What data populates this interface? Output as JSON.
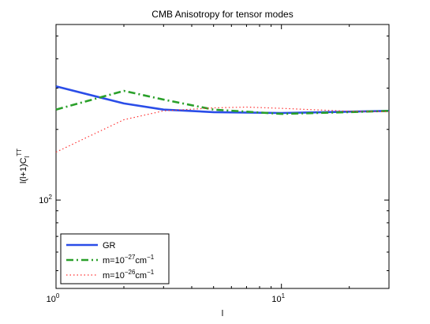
{
  "chart_data": {
    "type": "line",
    "title": "CMB Anisotropy for tensor modes",
    "xlabel": "l",
    "ylabel": "l(l+1)C_l^TT",
    "xscale": "log",
    "yscale": "log",
    "xlim": [
      1,
      30
    ],
    "ylim": [
      42,
      560
    ],
    "x_ticks": [
      {
        "value": 1,
        "base": "10",
        "exp": "0"
      },
      {
        "value": 10,
        "base": "10",
        "exp": "1"
      }
    ],
    "y_ticks": [
      {
        "value": 100,
        "base": "10",
        "exp": "2"
      }
    ],
    "series": [
      {
        "name": "GR",
        "legend_base": "GR",
        "legend_exp": "",
        "legend_unit": "",
        "legend_unit_exp": "",
        "color": "#2a4de8",
        "style": "solid",
        "x": [
          1,
          2,
          3,
          5,
          10,
          20,
          30
        ],
        "y": [
          305,
          258,
          243,
          237,
          235,
          238,
          240
        ]
      },
      {
        "name": "m=10^-27 cm^-1",
        "legend_base": "m=10",
        "legend_exp": "−27",
        "legend_unit": "cm",
        "legend_unit_exp": "−1",
        "color": "#2aa02a",
        "style": "dashdot",
        "x": [
          1,
          2,
          3,
          5,
          10,
          20,
          30
        ],
        "y": [
          243,
          292,
          268,
          243,
          233,
          237,
          240
        ]
      },
      {
        "name": "m=10^-26 cm^-1",
        "legend_base": "m=10",
        "legend_exp": "−26",
        "legend_unit": "cm",
        "legend_unit_exp": "−1",
        "color": "#ff3030",
        "style": "dotted",
        "x": [
          1,
          2,
          3,
          5,
          7,
          10,
          20,
          30
        ],
        "y": [
          160,
          220,
          240,
          247,
          249,
          246,
          239,
          238
        ]
      }
    ],
    "legend_position": "bottom-left",
    "grid": false
  }
}
